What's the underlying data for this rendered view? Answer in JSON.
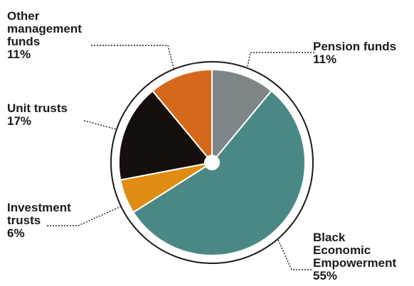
{
  "chart_data": {
    "type": "pie",
    "slices": [
      {
        "label_lines": [
          "Pension funds"
        ],
        "value": 11,
        "value_text": "11%",
        "color": "#7f8689"
      },
      {
        "label_lines": [
          "Black",
          "Economic",
          "Empowerment"
        ],
        "value": 55,
        "value_text": "55%",
        "color": "#4a8886"
      },
      {
        "label_lines": [
          "Investment",
          "trusts"
        ],
        "value": 6,
        "value_text": "6%",
        "color": "#de8c14"
      },
      {
        "label_lines": [
          "Unit trusts"
        ],
        "value": 17,
        "value_text": "17%",
        "color": "#140e0d"
      },
      {
        "label_lines": [
          "Other",
          "management",
          "funds"
        ],
        "value": 11,
        "value_text": "11%",
        "color": "#d4691b"
      }
    ],
    "legend": "none",
    "start_angle": "top",
    "direction": "clockwise"
  }
}
